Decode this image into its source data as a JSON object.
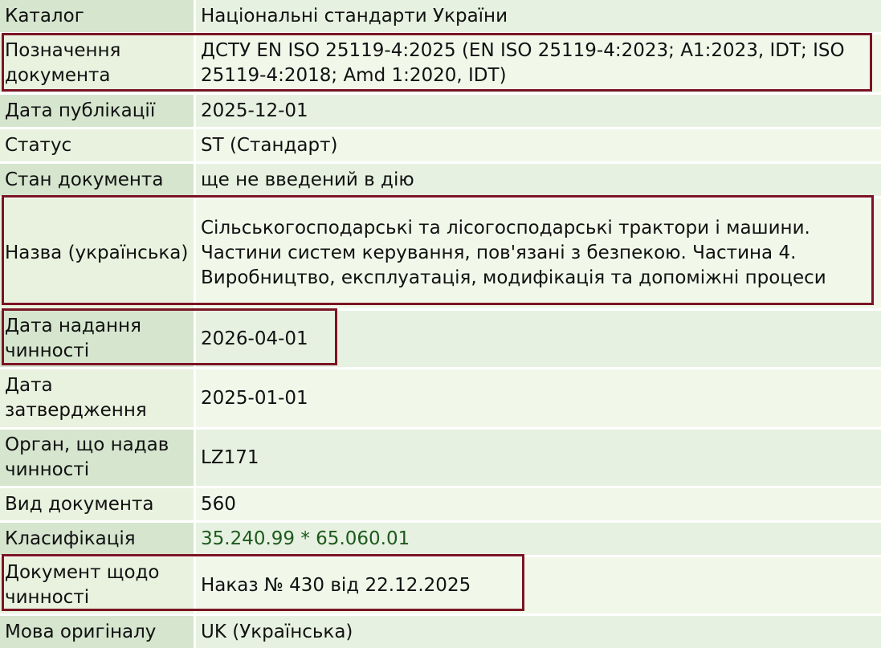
{
  "rows": [
    {
      "label": "Каталог",
      "value": "Національні стандарти України"
    },
    {
      "label": "Позначення документа",
      "value": "ДСТУ EN ISO 25119-4:2025 (EN ISO 25119-4:2023; A1:2023, IDT; ISO 25119-4:2018; Amd 1:2020, IDT)"
    },
    {
      "label": "Дата публікації",
      "value": "2025-12-01"
    },
    {
      "label": "Статус",
      "value": "ST (Стандарт)"
    },
    {
      "label": "Стан документа",
      "value": "ще не введений в дію"
    },
    {
      "label": "Назва (українська)",
      "value": "Сільськогосподарські та лісогосподарські трактори і машини. Частини систем керування, пов'язані з безпекою. Частина 4. Виробництво, експлуатація, модифікація та допоміжні процеси"
    },
    {
      "label": "Дата надання чинності",
      "value": "2026-04-01"
    },
    {
      "label": "Дата затвердження",
      "value": "2025-01-01"
    },
    {
      "label": "Орган, що надав чинності",
      "value": "LZ171"
    },
    {
      "label": "Вид документа",
      "value": "560"
    },
    {
      "label": "Класифікація",
      "value": "35.240.99 * 65.060.01"
    },
    {
      "label": "Документ щодо чинності",
      "value": "Наказ № 430 від 22.12.2025"
    },
    {
      "label": "Мова оригіналу",
      "value": "UK (Українська)"
    }
  ],
  "colors": {
    "highlight_box": "#7b1424",
    "classification_link": "#1d5a1d"
  }
}
